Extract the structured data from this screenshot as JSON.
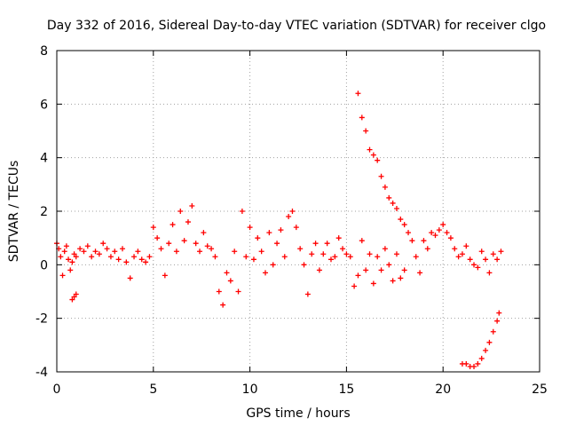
{
  "chart_data": {
    "type": "scatter",
    "title": "Day 332 of 2016, Sidereal Day-to-day VTEC variation (SDTVAR) for receiver clgo",
    "xlabel": "GPS time / hours",
    "ylabel": "SDTVAR / TECUs",
    "xlim": [
      0,
      25
    ],
    "ylim": [
      -4,
      8
    ],
    "xticks": [
      0,
      5,
      10,
      15,
      20,
      25
    ],
    "xtick_labels": [
      "0",
      "5",
      "10",
      "15",
      "20",
      "25"
    ],
    "yticks": [
      -4,
      -2,
      0,
      2,
      4,
      6,
      8
    ],
    "ytick_labels": [
      "-4",
      "-2",
      "0",
      "2",
      "4",
      "6",
      "8"
    ],
    "grid": true,
    "marker": "plus",
    "color": "#ff0000",
    "series": [
      {
        "name": "main trace",
        "x": [
          0.0,
          0.1,
          0.2,
          0.3,
          0.4,
          0.5,
          0.6,
          0.7,
          0.8,
          0.9,
          1.0,
          1.2,
          1.4,
          1.6,
          1.8,
          2.0,
          2.2,
          2.4,
          2.6,
          2.8,
          3.0,
          3.2,
          3.4,
          3.6,
          3.8,
          4.0,
          4.2,
          4.4,
          4.6,
          4.8,
          5.0,
          5.2,
          5.4,
          5.6,
          5.8,
          6.0,
          6.2,
          6.4,
          6.6,
          6.8,
          7.0,
          7.2,
          7.4,
          7.6,
          7.8,
          8.0,
          8.2,
          8.4,
          8.6,
          8.8,
          9.0,
          9.2,
          9.4,
          9.6,
          9.8,
          10.0,
          10.2,
          10.4,
          10.6,
          10.8,
          11.0,
          11.2,
          11.4,
          11.6,
          11.8,
          12.0,
          12.2,
          12.4,
          12.6,
          12.8,
          13.0,
          13.2,
          13.4,
          13.6,
          13.8,
          14.0,
          14.2,
          14.4,
          14.6,
          14.8,
          15.0,
          15.2,
          15.4,
          15.6,
          15.8,
          16.0,
          16.2,
          16.4,
          16.6,
          16.8,
          17.0,
          17.2,
          17.4,
          17.6,
          17.8,
          18.0,
          18.2,
          18.4,
          18.6,
          18.8,
          19.0,
          19.2,
          19.4,
          19.6,
          19.8,
          20.0,
          20.2,
          20.4,
          20.6,
          20.8,
          21.0,
          21.2,
          21.4,
          21.6,
          21.8,
          22.0,
          22.2,
          22.4,
          22.6,
          22.8,
          23.0
        ],
        "y": [
          0.8,
          0.6,
          0.3,
          -0.4,
          0.5,
          0.7,
          0.2,
          -0.2,
          0.1,
          0.4,
          0.3,
          0.6,
          0.5,
          0.7,
          0.3,
          0.5,
          0.4,
          0.8,
          0.6,
          0.3,
          0.5,
          0.2,
          0.6,
          0.1,
          -0.5,
          0.3,
          0.5,
          0.2,
          0.1,
          0.3,
          1.4,
          1.0,
          0.6,
          -0.4,
          0.8,
          1.5,
          0.5,
          2.0,
          0.9,
          1.6,
          2.2,
          0.8,
          0.5,
          1.2,
          0.7,
          0.6,
          0.3,
          -1.0,
          -1.5,
          -0.3,
          -0.6,
          0.5,
          -1.0,
          2.0,
          0.3,
          1.4,
          0.2,
          1.0,
          0.5,
          -0.3,
          1.2,
          0.0,
          0.8,
          1.3,
          0.3,
          1.8,
          2.0,
          1.4,
          0.6,
          0.0,
          -1.1,
          0.4,
          0.8,
          -0.2,
          0.4,
          0.8,
          0.2,
          0.3,
          1.0,
          0.6,
          0.4,
          0.3,
          -0.8,
          -0.4,
          0.9,
          -0.2,
          0.4,
          -0.7,
          0.3,
          -0.2,
          0.6,
          0.0,
          -0.6,
          0.4,
          -0.5,
          -0.2,
          1.2,
          0.9,
          0.3,
          -0.3,
          0.9,
          0.6,
          1.2,
          1.1,
          1.3,
          1.5,
          1.2,
          1.0,
          0.6,
          0.3,
          0.4,
          0.7,
          0.2,
          0.0,
          -0.1,
          0.5,
          0.2,
          -0.3,
          0.4,
          0.2,
          0.5
        ]
      },
      {
        "name": "upper descending arc",
        "x": [
          15.6,
          15.8,
          16.0,
          16.2,
          16.4,
          16.6,
          16.8,
          17.0,
          17.2,
          17.4,
          17.6,
          17.8,
          18.0
        ],
        "y": [
          6.4,
          5.5,
          5.0,
          4.3,
          4.1,
          3.9,
          3.3,
          2.9,
          2.5,
          2.3,
          2.1,
          1.7,
          1.5
        ]
      },
      {
        "name": "lower ascending arc",
        "x": [
          21.0,
          21.2,
          21.4,
          21.6,
          21.8,
          22.0,
          22.2,
          22.4,
          22.6,
          22.8,
          22.9
        ],
        "y": [
          -3.7,
          -3.7,
          -3.8,
          -3.8,
          -3.7,
          -3.5,
          -3.2,
          -2.9,
          -2.5,
          -2.1,
          -1.8
        ]
      },
      {
        "name": "isolated cluster",
        "x": [
          0.8,
          0.9,
          1.0
        ],
        "y": [
          -1.3,
          -1.2,
          -1.1
        ]
      }
    ]
  }
}
